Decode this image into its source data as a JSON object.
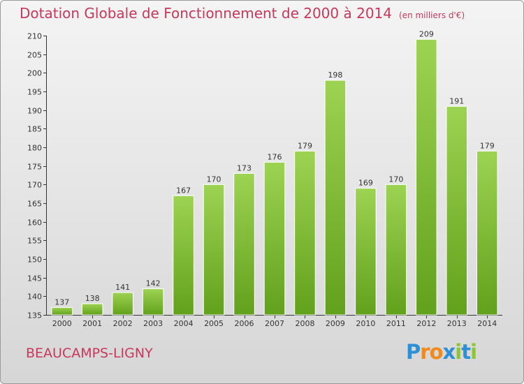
{
  "header": {
    "title": "Dotation Globale de Fonctionnement de 2000 à 2014",
    "unit": "(en milliers d'€)"
  },
  "footer": {
    "commune": "BEAUCAMPS-LIGNY",
    "logo": "Proxiti"
  },
  "chart_data": {
    "type": "bar",
    "title": "Dotation Globale de Fonctionnement de 2000 à 2014",
    "subtitle": "(en milliers d'€)",
    "xlabel": "",
    "ylabel": "",
    "categories": [
      "2000",
      "2001",
      "2002",
      "2003",
      "2004",
      "2005",
      "2006",
      "2007",
      "2008",
      "2009",
      "2010",
      "2011",
      "2012",
      "2013",
      "2014"
    ],
    "values": [
      137,
      138,
      141,
      142,
      167,
      170,
      173,
      176,
      179,
      198,
      169,
      170,
      209,
      191,
      179
    ],
    "ylim": [
      135,
      210
    ],
    "yticks": [
      135,
      140,
      145,
      150,
      155,
      160,
      165,
      170,
      175,
      180,
      185,
      190,
      195,
      200,
      205,
      210
    ],
    "grid": false,
    "legend": "none",
    "colors": {
      "bar_light": "#9dd352",
      "bar_dark": "#62a11c",
      "title": "#c8385c",
      "axis": "#333333"
    }
  }
}
